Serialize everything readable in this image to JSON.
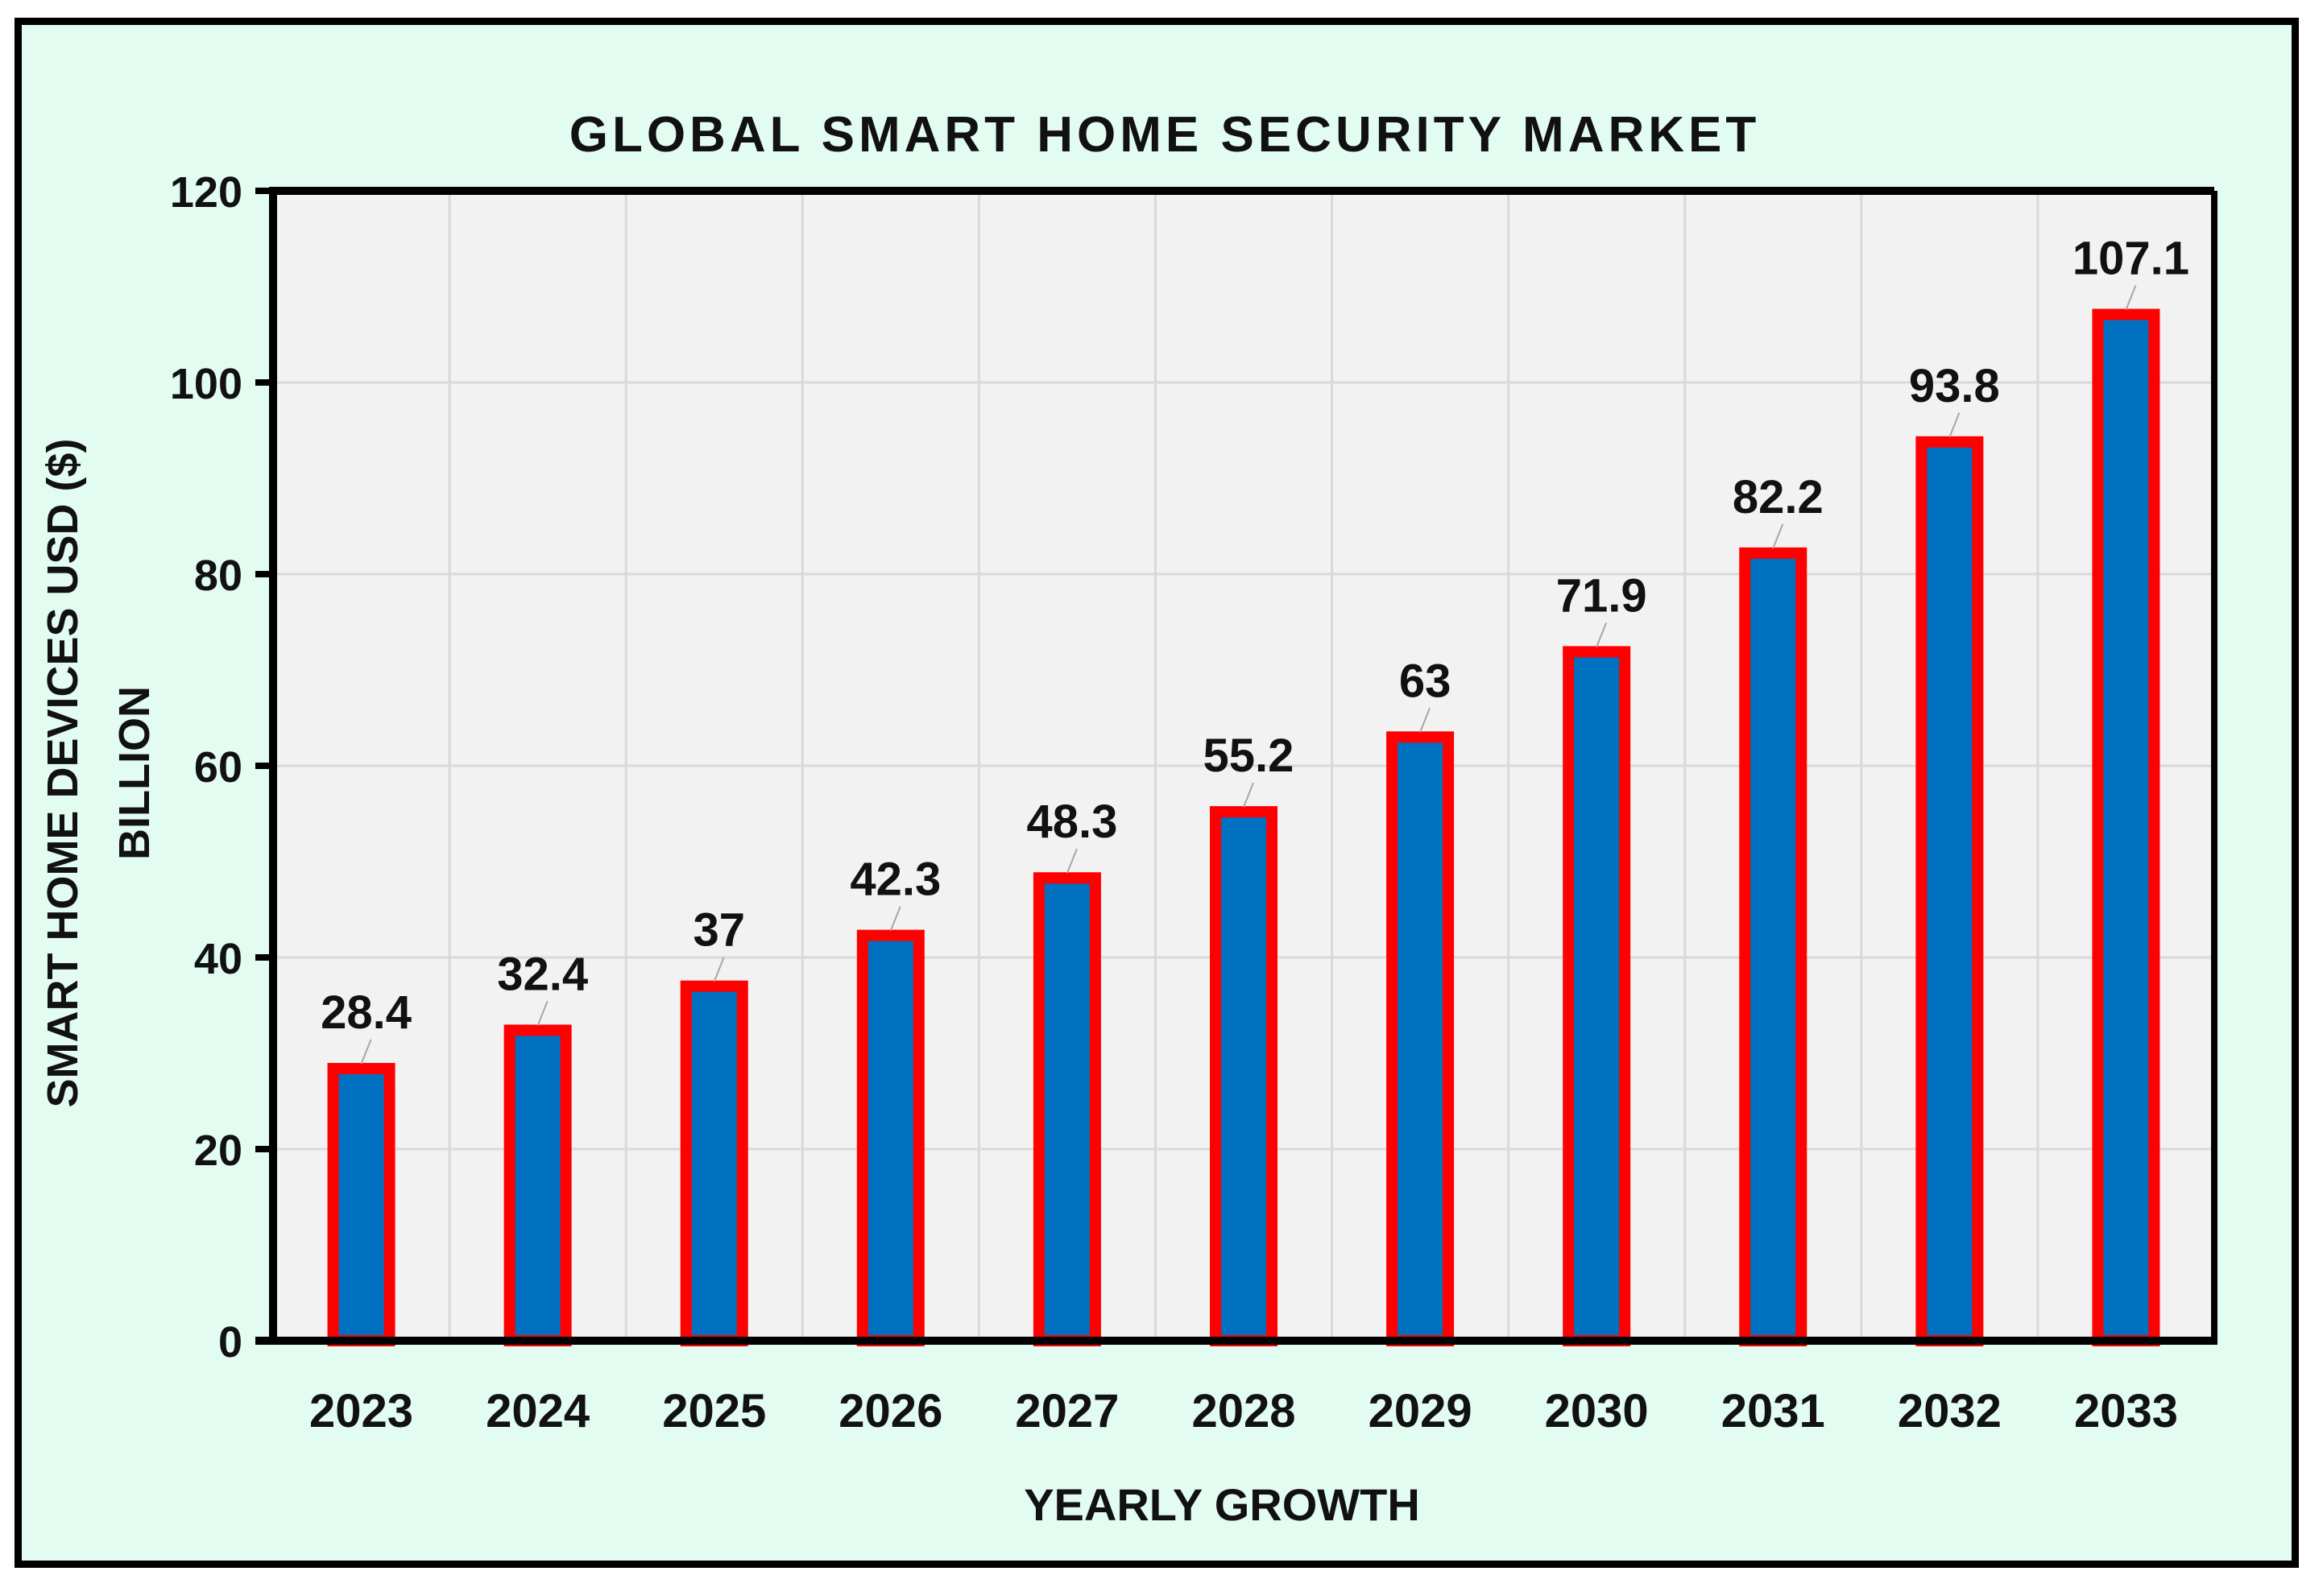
{
  "chart_data": {
    "type": "bar",
    "title": "GLOBAL SMART HOME SECURITY MARKET",
    "xlabel": "YEARLY GROWTH",
    "ylabel_lines": [
      "SMART HOME DEVICES  USD ($)",
      "BILLION"
    ],
    "categories": [
      "2023",
      "2024",
      "2025",
      "2026",
      "2027",
      "2028",
      "2029",
      "2030",
      "2031",
      "2032",
      "2033"
    ],
    "values": [
      28.4,
      32.4,
      37,
      42.3,
      48.3,
      55.2,
      63,
      71.9,
      82.2,
      93.8,
      107.1
    ],
    "data_labels": [
      "28.4",
      "32.4",
      "37",
      "42.3",
      "48.3",
      "55.2",
      "63",
      "71.9",
      "82.2",
      "93.8",
      "107.1"
    ],
    "ylim": [
      0,
      120
    ],
    "yticks": [
      "0",
      "20",
      "40",
      "60",
      "80",
      "100",
      "120"
    ],
    "grid": true,
    "colors": {
      "bar_fill": "#0070c0",
      "bar_border": "#ff0000",
      "plot_bg": "#f2f2f2",
      "page_bg": "#e3fcf1"
    }
  }
}
